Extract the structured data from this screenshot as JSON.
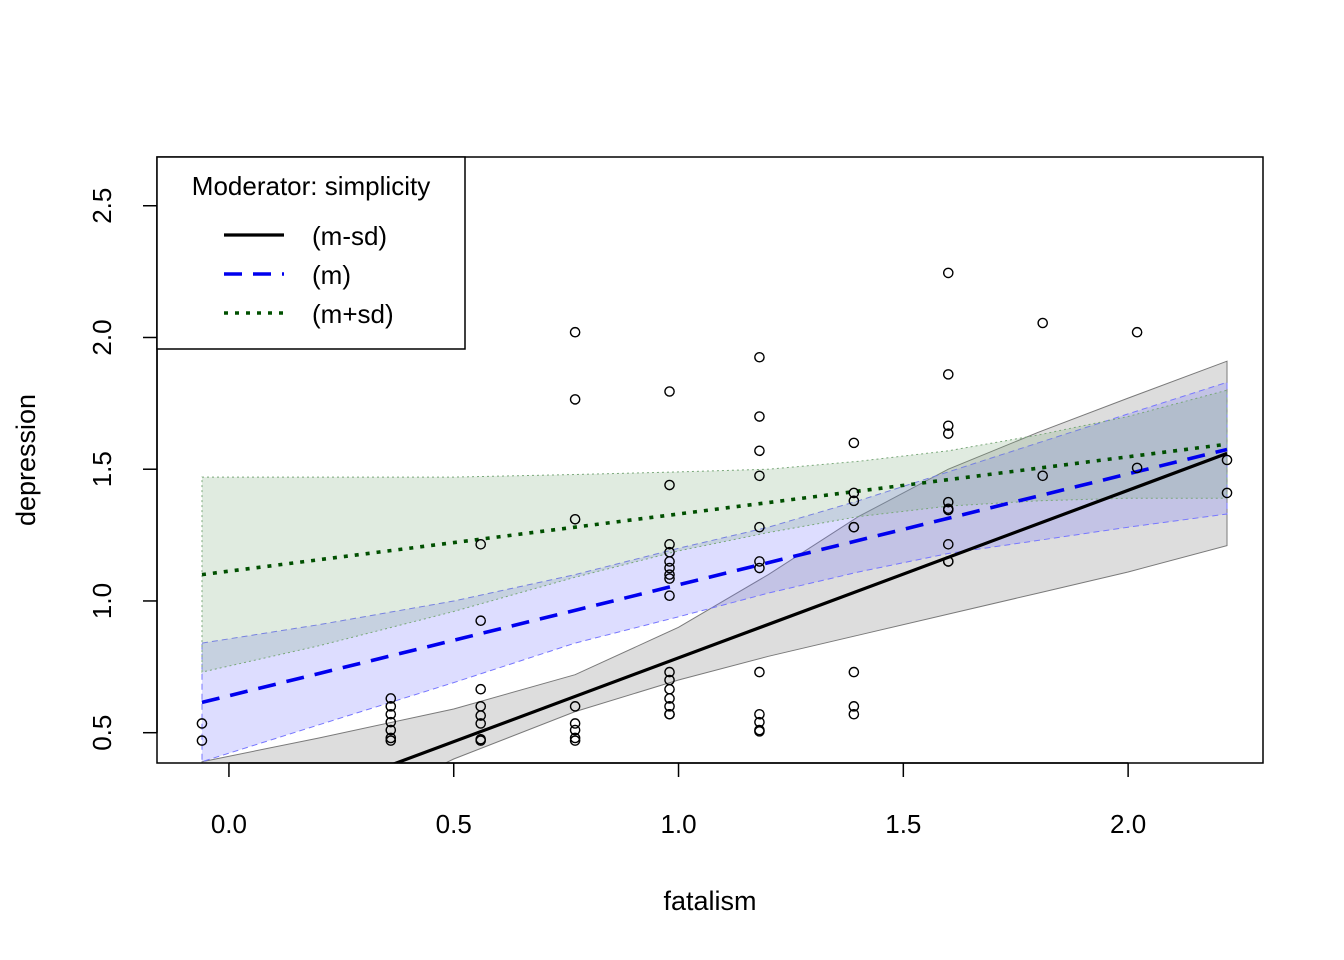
{
  "chart_data": {
    "type": "line",
    "xlabel": "fatalism",
    "ylabel": "depression",
    "xlim": [
      -0.16,
      2.3
    ],
    "ylim": [
      0.385,
      2.685
    ],
    "x_ticks": [
      0.0,
      0.5,
      1.0,
      1.5,
      2.0
    ],
    "x_tick_labels": [
      "0.0",
      "0.5",
      "1.0",
      "1.5",
      "2.0"
    ],
    "y_ticks": [
      0.5,
      1.0,
      1.5,
      2.0,
      2.5
    ],
    "y_tick_labels": [
      "0.5",
      "1.0",
      "1.5",
      "2.0",
      "2.5"
    ],
    "legend": {
      "title": "Moderator: simplicity",
      "position": "top-left",
      "entries": [
        "(m-sd)",
        "(m)",
        "(m+sd)"
      ]
    },
    "series": [
      {
        "name": "(m-sd)",
        "color": "#000000",
        "dash": "solid",
        "band_fill": "rgba(150,150,150,0.32)",
        "band_stroke": "#7a7a7a",
        "x": [
          -0.06,
          2.22
        ],
        "y": [
          0.11,
          1.56
        ],
        "band_x": [
          -0.06,
          0.2,
          0.5,
          0.77,
          1.0,
          1.2,
          1.4,
          1.6,
          1.8,
          2.0,
          2.22
        ],
        "band_upper": [
          0.39,
          0.48,
          0.59,
          0.72,
          0.9,
          1.1,
          1.32,
          1.5,
          1.64,
          1.77,
          1.91
        ],
        "band_lower": [
          -0.17,
          0.15,
          0.4,
          0.58,
          0.7,
          0.79,
          0.87,
          0.95,
          1.03,
          1.11,
          1.21
        ]
      },
      {
        "name": "(m)",
        "color": "#0000ee",
        "dash": "long-dash",
        "band_fill": "rgba(120,120,255,0.25)",
        "band_stroke": "#7777ff",
        "x": [
          -0.06,
          2.22
        ],
        "y": [
          0.615,
          1.575
        ],
        "band_x": [
          -0.06,
          0.2,
          0.5,
          0.77,
          1.0,
          1.2,
          1.4,
          1.6,
          1.8,
          2.0,
          2.22
        ],
        "band_upper": [
          0.84,
          0.91,
          1.0,
          1.1,
          1.2,
          1.28,
          1.38,
          1.49,
          1.6,
          1.71,
          1.83
        ],
        "band_lower": [
          0.39,
          0.53,
          0.69,
          0.84,
          0.94,
          1.03,
          1.11,
          1.18,
          1.23,
          1.28,
          1.33
        ]
      },
      {
        "name": "(m+sd)",
        "color": "#005000",
        "dash": "dotted",
        "band_fill": "rgba(120,170,120,0.23)",
        "band_stroke": "#7aa87a",
        "x": [
          -0.06,
          2.22
        ],
        "y": [
          1.1,
          1.595
        ],
        "band_x": [
          -0.06,
          0.2,
          0.5,
          0.77,
          1.0,
          1.2,
          1.4,
          1.6,
          1.8,
          2.0,
          2.22
        ],
        "band_upper": [
          1.47,
          1.47,
          1.47,
          1.48,
          1.49,
          1.5,
          1.53,
          1.57,
          1.63,
          1.7,
          1.8
        ],
        "band_lower": [
          0.73,
          0.83,
          0.96,
          1.09,
          1.19,
          1.26,
          1.32,
          1.36,
          1.38,
          1.39,
          1.39
        ]
      }
    ],
    "points": {
      "x": [
        -0.06,
        -0.06,
        0.36,
        0.36,
        0.36,
        0.36,
        0.36,
        0.36,
        0.36,
        0.56,
        0.56,
        0.56,
        0.56,
        0.56,
        0.56,
        0.56,
        0.56,
        0.77,
        0.77,
        0.77,
        0.77,
        0.77,
        0.77,
        0.77,
        0.77,
        0.98,
        0.98,
        0.98,
        0.98,
        0.98,
        0.98,
        0.98,
        0.98,
        0.98,
        0.98,
        0.98,
        0.98,
        0.98,
        0.98,
        0.98,
        0.98,
        1.18,
        1.18,
        1.18,
        1.18,
        1.18,
        1.18,
        1.18,
        1.18,
        1.18,
        1.18,
        1.18,
        1.18,
        1.39,
        1.39,
        1.39,
        1.39,
        1.39,
        1.39,
        1.39,
        1.39,
        1.6,
        1.6,
        1.6,
        1.6,
        1.6,
        1.6,
        1.6,
        1.6,
        1.6,
        1.6,
        1.81,
        1.81,
        2.02,
        2.02,
        2.22,
        2.22
      ],
      "y": [
        0.535,
        0.47,
        0.63,
        0.6,
        0.57,
        0.54,
        0.51,
        0.48,
        0.47,
        1.215,
        0.925,
        0.665,
        0.6,
        0.565,
        0.535,
        0.475,
        0.47,
        2.02,
        1.765,
        1.31,
        0.6,
        0.535,
        0.51,
        0.48,
        0.47,
        1.795,
        1.44,
        1.215,
        1.185,
        1.15,
        1.125,
        1.1,
        1.085,
        1.02,
        0.73,
        0.7,
        0.665,
        0.63,
        0.6,
        0.57,
        0.57,
        1.925,
        1.7,
        1.57,
        1.475,
        1.28,
        1.15,
        1.125,
        0.73,
        0.57,
        0.54,
        0.51,
        0.505,
        1.6,
        1.41,
        1.38,
        1.28,
        1.28,
        0.73,
        0.6,
        0.57,
        2.245,
        1.86,
        1.665,
        1.635,
        1.375,
        1.35,
        1.345,
        1.215,
        1.15,
        1.15,
        2.055,
        1.475,
        2.02,
        1.505,
        1.535,
        1.41
      ]
    }
  }
}
